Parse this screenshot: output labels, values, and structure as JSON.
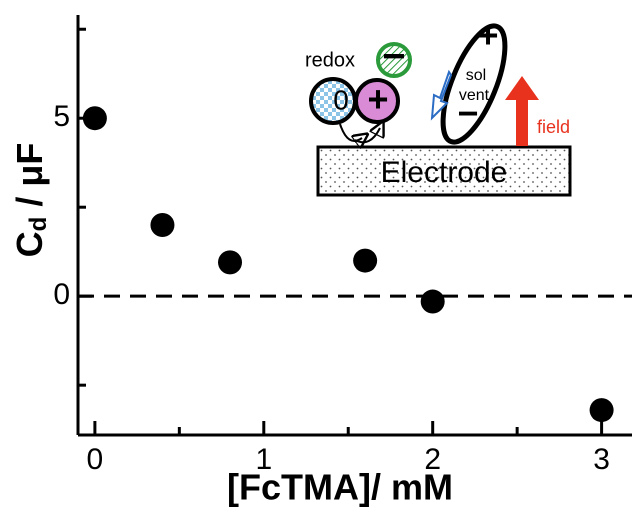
{
  "chart_data": {
    "type": "scatter",
    "xlabel": "[FcTMA]/ mM",
    "ylabel": [
      "C",
      "d",
      " / μF"
    ],
    "x": [
      0,
      0.4,
      0.8,
      1.6,
      2,
      3
    ],
    "values": [
      5.0,
      2.0,
      0.95,
      1.0,
      -0.15,
      -3.2
    ],
    "color": "#000000",
    "xlim": [
      -0.1,
      3.18
    ],
    "xticks": [
      0,
      1,
      2,
      3
    ],
    "xminor_ticks": [
      0.5,
      1.5,
      2.5
    ],
    "ylim": [
      -3.9,
      7.9
    ],
    "yticks": [
      0,
      5
    ],
    "yminor_ticks": [
      -2.5,
      2.5,
      7.5
    ],
    "zero_line": 0,
    "inset": {
      "redox": "redox",
      "neutral": "0",
      "cation": "+",
      "anion": "−",
      "solvent": [
        "sol",
        "vent"
      ],
      "dipole_plus": "+",
      "dipole_minus": "−",
      "field": "field",
      "electrode": "Electrode"
    }
  }
}
